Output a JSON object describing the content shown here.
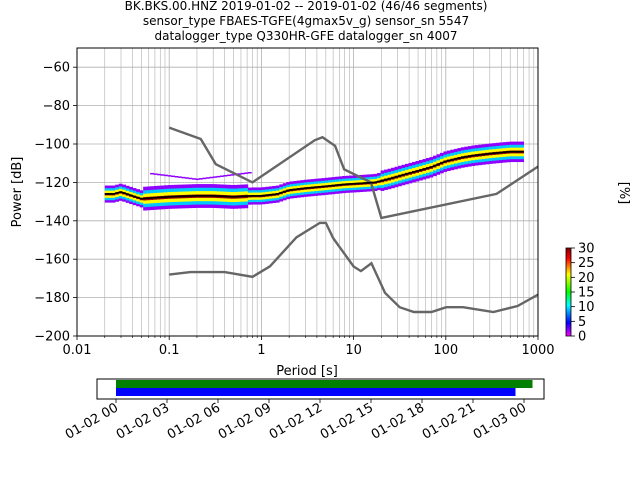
{
  "chart_data": [
    {
      "type": "heatmap",
      "title_lines": [
        "BK.BKS.00.HNZ   2019-01-02 -- 2019-01-02  (46/46 segments)",
        "sensor_type FBAES-TGFE(4gmax5v_g) sensor_sn 5547",
        "datalogger_type Q330HR-GFE datalogger_sn 4007"
      ],
      "xlabel": "Period [s]",
      "ylabel": "Power [dB]",
      "x_scale": "log",
      "xlim": [
        0.01,
        1000
      ],
      "ylim": [
        -200,
        -50
      ],
      "x_tick_values": [
        0.01,
        0.1,
        1,
        10,
        100,
        1000
      ],
      "x_tick_labels": [
        "0.01",
        "0.1",
        "1",
        "10",
        "100",
        "1000"
      ],
      "y_tick_values": [
        -200,
        -180,
        -160,
        -140,
        -120,
        -100,
        -80,
        -60
      ],
      "y_tick_labels": [
        "−200",
        "−180",
        "−160",
        "−140",
        "−120",
        "−100",
        "−80",
        "−60"
      ],
      "grid": true,
      "series": [
        {
          "kind": "noise-model-high",
          "color": "#666666",
          "points": [
            [
              0.1,
              -91.5
            ],
            [
              0.22,
              -97.4
            ],
            [
              0.32,
              -110.5
            ],
            [
              0.8,
              -120
            ],
            [
              3.8,
              -98
            ],
            [
              4.6,
              -96.5
            ],
            [
              6.3,
              -101
            ],
            [
              7.9,
              -113.2
            ],
            [
              15.4,
              -120
            ],
            [
              20,
              -138.5
            ],
            [
              354.8,
              -126
            ],
            [
              10000,
              -80
            ]
          ]
        },
        {
          "kind": "noise-model-low",
          "color": "#666666",
          "points": [
            [
              0.1,
              -168
            ],
            [
              0.17,
              -166.7
            ],
            [
              0.4,
              -166.7
            ],
            [
              0.8,
              -169.2
            ],
            [
              1.24,
              -163.7
            ],
            [
              2.4,
              -148.6
            ],
            [
              4.3,
              -141.1
            ],
            [
              5,
              -141.1
            ],
            [
              6,
              -149
            ],
            [
              10,
              -163.8
            ],
            [
              12,
              -166.2
            ],
            [
              15.6,
              -162.1
            ],
            [
              21.9,
              -177.5
            ],
            [
              31.6,
              -185
            ],
            [
              45,
              -187.5
            ],
            [
              70,
              -187.5
            ],
            [
              101,
              -185
            ],
            [
              154,
              -185
            ],
            [
              328,
              -187.5
            ],
            [
              600,
              -184.4
            ],
            [
              10000,
              -151.5
            ]
          ]
        },
        {
          "kind": "mode",
          "color": "#000000",
          "points": [
            [
              0.02,
              -126
            ],
            [
              0.025,
              -126
            ],
            [
              0.03,
              -125
            ],
            [
              0.04,
              -127
            ],
            [
              0.05,
              -128.5
            ],
            [
              0.07,
              -128
            ],
            [
              0.1,
              -127.5
            ],
            [
              0.2,
              -127
            ],
            [
              0.3,
              -127
            ],
            [
              0.5,
              -127.5
            ],
            [
              0.8,
              -127
            ],
            [
              1,
              -127
            ],
            [
              1.5,
              -126
            ],
            [
              2,
              -124
            ],
            [
              3,
              -123
            ],
            [
              5,
              -122
            ],
            [
              8,
              -121
            ],
            [
              12,
              -120.5
            ],
            [
              17,
              -120
            ],
            [
              25,
              -118
            ],
            [
              35,
              -116
            ],
            [
              50,
              -114
            ],
            [
              70,
              -112
            ],
            [
              100,
              -109
            ],
            [
              150,
              -107
            ],
            [
              200,
              -106
            ],
            [
              300,
              -105
            ],
            [
              500,
              -104
            ],
            [
              700,
              -104
            ]
          ]
        }
      ],
      "colorbar": {
        "label": "[%]",
        "range": [
          0,
          30
        ],
        "tick_values": [
          0,
          5,
          10,
          15,
          20,
          25,
          30
        ],
        "tick_labels": [
          "0",
          "5",
          "10",
          "15",
          "20",
          "25",
          "30"
        ],
        "colormap": [
          "#ffffff",
          "#8000ff",
          "#0000ff",
          "#00ffff",
          "#00ff00",
          "#ffff00",
          "#ff0000",
          "#800000"
        ]
      }
    },
    {
      "type": "timeline",
      "xlim_hours": [
        0,
        24
      ],
      "x_tick_hours": [
        0,
        3,
        6,
        9,
        12,
        15,
        18,
        21,
        24
      ],
      "x_tick_labels": [
        "01-02 00",
        "01-02 03",
        "01-02 06",
        "01-02 09",
        "01-02 12",
        "01-02 15",
        "01-02 18",
        "01-02 21",
        "01-03 00"
      ],
      "bars": [
        {
          "color": "#008000",
          "start_hour": -1.2,
          "end_hour": 24.5
        },
        {
          "color": "#0000ff",
          "start_hour": -1.2,
          "end_hour": 23.5
        }
      ]
    }
  ]
}
